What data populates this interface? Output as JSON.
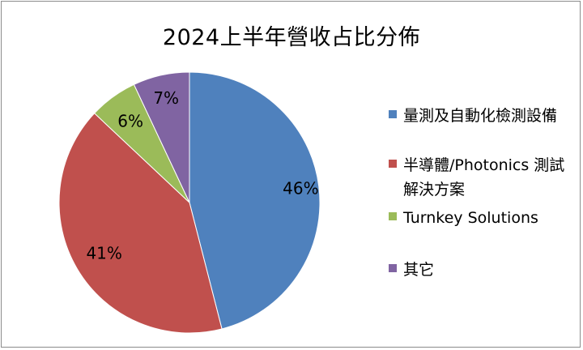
{
  "chart_data": {
    "type": "pie",
    "title": "2024上半年營收占比分佈",
    "categories": [
      "量測及自動化檢測設備",
      "半導體/Photonics 測試解決方案",
      "Turnkey Solutions",
      "其它"
    ],
    "values": [
      46,
      41,
      6,
      7
    ],
    "data_labels": [
      "46%",
      "41%",
      "6%",
      "7%"
    ],
    "colors": [
      "#4f81bd",
      "#c0504d",
      "#9bbb59",
      "#8064a2"
    ],
    "start_angle": "12 o'clock",
    "direction": "clockwise",
    "legend_position": "right"
  }
}
